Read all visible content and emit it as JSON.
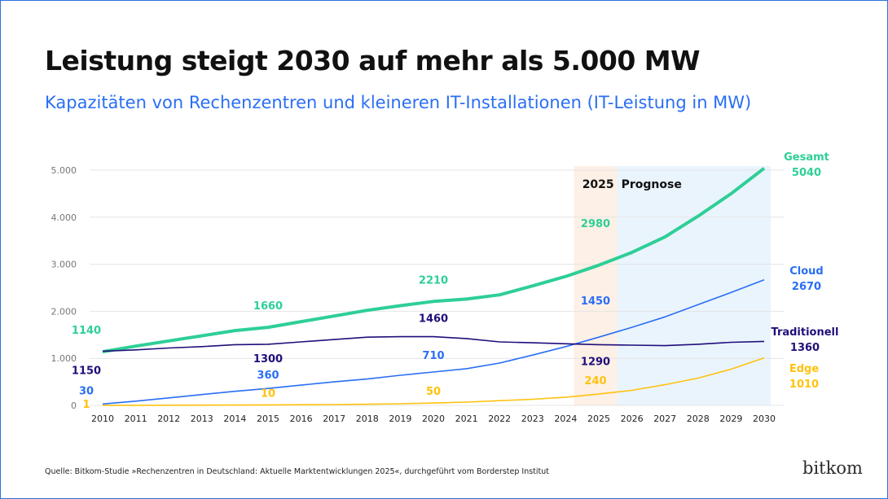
{
  "title": "Leistung steigt 2030 auf mehr als 5.000 MW",
  "subtitle": "Kapazitäten von Rechenzentren und kleineren IT-Installationen (IT-Leistung in MW)",
  "source": "Quelle: Bitkom-Studie »Rechenzentren in Deutschland: Aktuelle Marktentwicklungen 2025«, durchgeführt vom Borderstep Institut",
  "logo": "bitkom",
  "chart_data": {
    "type": "line",
    "x": [
      2010,
      2011,
      2012,
      2013,
      2014,
      2015,
      2016,
      2017,
      2018,
      2019,
      2020,
      2021,
      2022,
      2023,
      2024,
      2025,
      2026,
      2027,
      2028,
      2029,
      2030
    ],
    "ylim": [
      0,
      5000
    ],
    "yticks": [
      "0",
      "1.000",
      "2.000",
      "3.000",
      "4.000",
      "5.000"
    ],
    "ytick_values": [
      0,
      1000,
      2000,
      3000,
      4000,
      5000
    ],
    "grid": true,
    "highlight": {
      "current_label": "2025",
      "forecast_label": "Prognose",
      "current_color": "#fdf0e6",
      "forecast_color": "#eaf4fd"
    },
    "series": [
      {
        "name": "Gesamt",
        "color": "#2ecf96",
        "values": [
          1140,
          1260,
          1370,
          1480,
          1590,
          1660,
          1780,
          1900,
          2020,
          2120,
          2210,
          2260,
          2350,
          2540,
          2740,
          2980,
          3250,
          3580,
          4020,
          4500,
          5040
        ],
        "labels": {
          "2010": "1140",
          "2015": "1660",
          "2020": "2210",
          "2025": "2980"
        },
        "end_label": "5040"
      },
      {
        "name": "Cloud",
        "color": "#2a6ef5",
        "values": [
          30,
          90,
          160,
          230,
          300,
          360,
          430,
          500,
          560,
          640,
          710,
          780,
          900,
          1070,
          1250,
          1450,
          1660,
          1880,
          2140,
          2400,
          2670
        ],
        "labels": {
          "2010": "30",
          "2015": "360",
          "2020": "710",
          "2025": "1450"
        },
        "end_label": "2670"
      },
      {
        "name": "Traditionell",
        "color": "#1f0f7a",
        "values": [
          1150,
          1180,
          1220,
          1250,
          1290,
          1300,
          1350,
          1400,
          1450,
          1460,
          1460,
          1420,
          1350,
          1330,
          1310,
          1290,
          1280,
          1270,
          1300,
          1340,
          1360
        ],
        "labels": {
          "2010": "1150",
          "2015": "1300",
          "2020": "1460",
          "2025": "1290"
        },
        "end_label": "1360"
      },
      {
        "name": "Edge",
        "color": "#ffc20e",
        "values": [
          1,
          2,
          3,
          5,
          7,
          10,
          14,
          18,
          25,
          35,
          50,
          70,
          100,
          130,
          175,
          240,
          320,
          440,
          580,
          770,
          1010
        ],
        "labels": {
          "2010": "1",
          "2015": "10",
          "2020": "50",
          "2025": "240"
        },
        "end_label": "1010"
      }
    ]
  }
}
